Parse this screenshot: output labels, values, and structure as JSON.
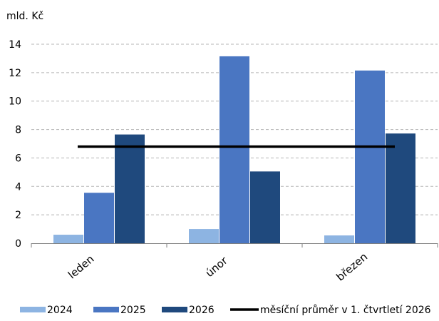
{
  "chart_data": {
    "type": "bar",
    "ylabel": "mld. Kč",
    "ylim": [
      0,
      14
    ],
    "yticks": [
      "0",
      "2",
      "4",
      "6",
      "8",
      "10",
      "12",
      "14"
    ],
    "grid": "horizontal dashed",
    "legend_position": "bottom",
    "categories": [
      "leden",
      "únor",
      "březen"
    ],
    "series": [
      {
        "name": "2024",
        "values": [
          0.6,
          1.0,
          0.55
        ],
        "color": "#8DB4E2"
      },
      {
        "name": "2025",
        "values": [
          3.55,
          13.15,
          12.15
        ],
        "color": "#4A76C2"
      },
      {
        "name": "2026",
        "values": [
          7.65,
          5.05,
          7.72
        ],
        "color": "#1F497D"
      }
    ],
    "reference_line": {
      "name": "měsíční průměr v 1. čtvrtletí 2026",
      "value": 6.8,
      "color": "#000000"
    }
  }
}
